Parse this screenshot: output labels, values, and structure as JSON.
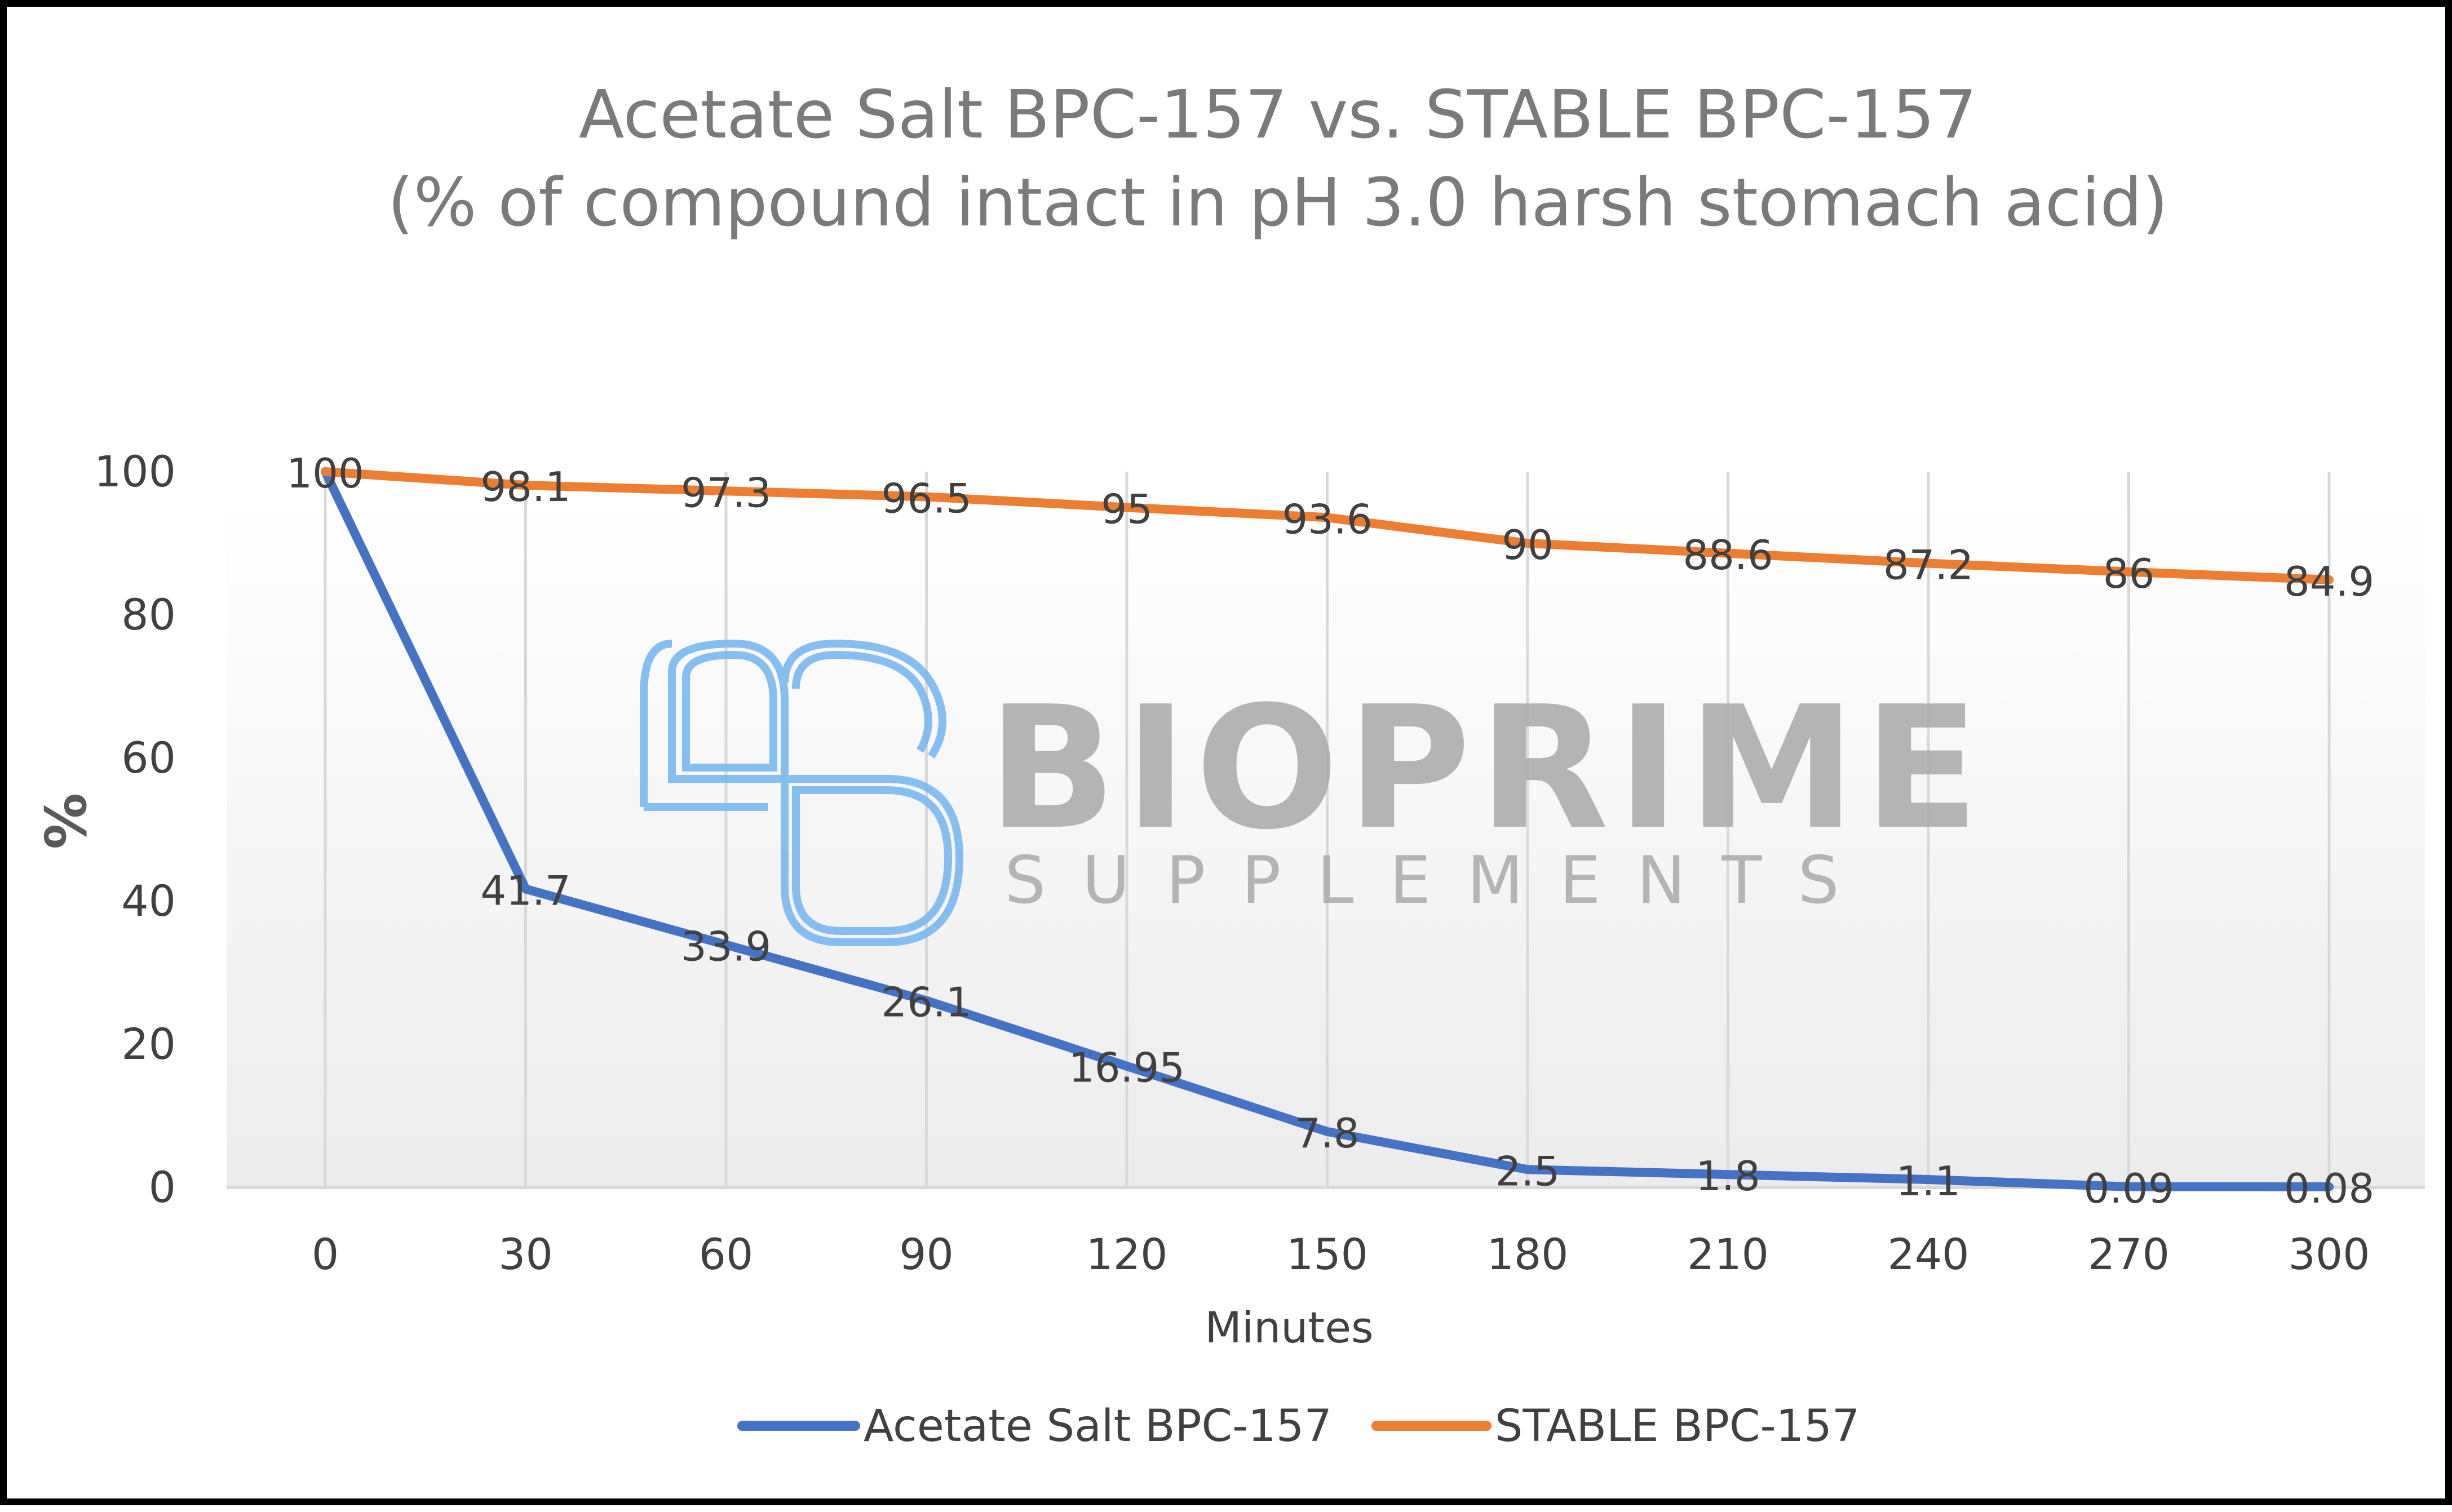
{
  "chart_data": {
    "type": "line",
    "title_line1": "Acetate Salt BPC-157 vs. STABLE BPC-157",
    "title_line2": "(% of compound intact in pH 3.0 harsh stomach acid)",
    "xlabel": "Minutes",
    "ylabel": "%",
    "ylim": [
      0,
      100
    ],
    "y_ticks": [
      "0",
      "20",
      "40",
      "60",
      "80",
      "100"
    ],
    "x": [
      "0",
      "30",
      "60",
      "90",
      "120",
      "150",
      "180",
      "210",
      "240",
      "270",
      "300"
    ],
    "grid": "vertical",
    "legend_position": "bottom",
    "series": [
      {
        "name": "Acetate Salt BPC-157",
        "color": "#4472C4",
        "values": [
          100,
          41.7,
          33.9,
          26.1,
          16.95,
          7.8,
          2.5,
          1.8,
          1.1,
          0.09,
          0.08
        ],
        "labels": [
          "100",
          "41.7",
          "33.9",
          "26.1",
          "16.95",
          "7.8",
          "2.5",
          "1.8",
          "1.1",
          "0.09",
          "0.08"
        ]
      },
      {
        "name": "STABLE BPC-157",
        "color": "#ED7D31",
        "values": [
          100,
          98.1,
          97.3,
          96.5,
          95,
          93.6,
          90,
          88.6,
          87.2,
          86,
          84.9
        ],
        "labels": [
          "100",
          "98.1",
          "97.3",
          "96.5",
          "95",
          "93.6",
          "90",
          "88.6",
          "87.2",
          "86",
          "84.9"
        ]
      }
    ]
  },
  "watermark": {
    "brand": "BIOPRIME",
    "tagline": "SUPPLEMENTS",
    "logo_icon": "bp-monogram-icon",
    "logo_color": "#79b8f0"
  }
}
